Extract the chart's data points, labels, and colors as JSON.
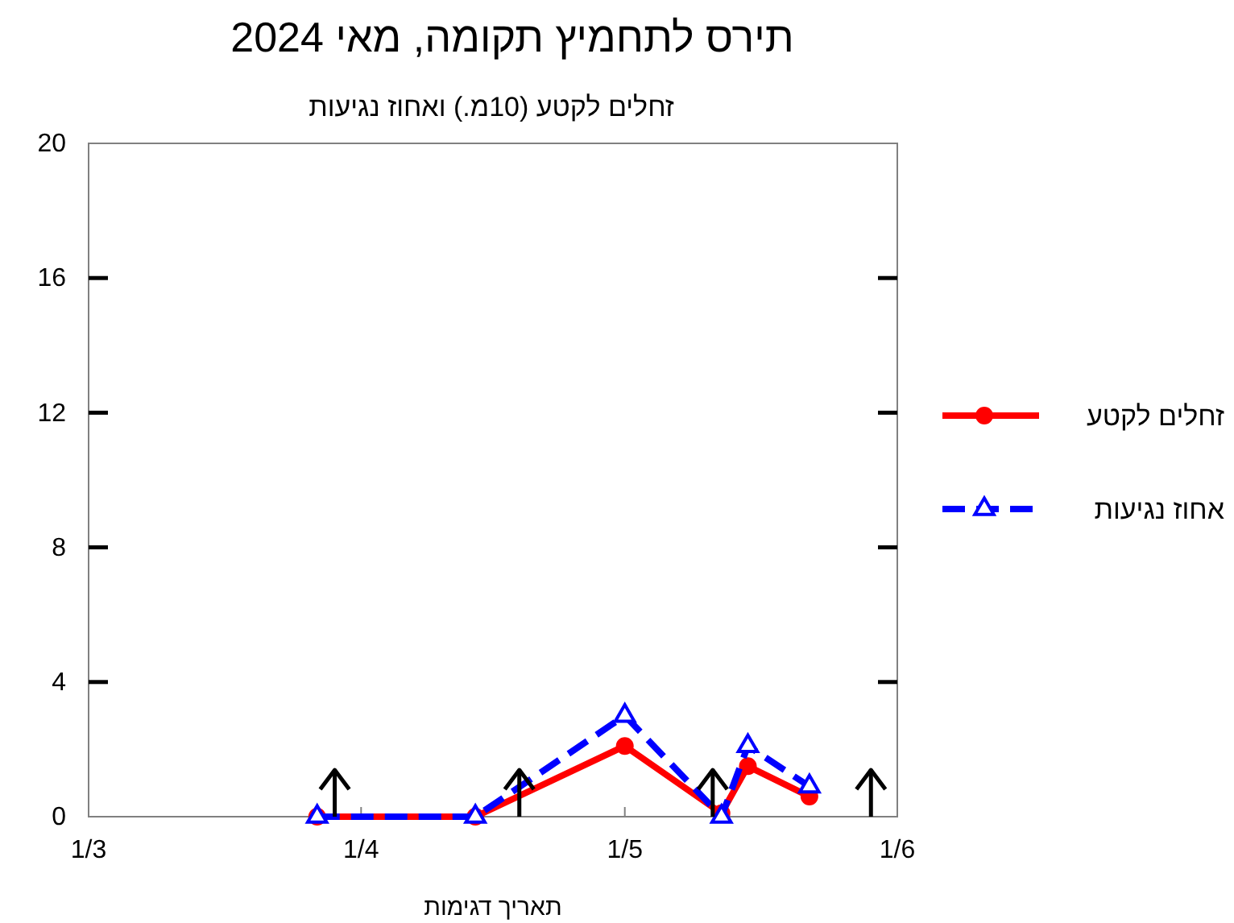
{
  "chart_data": {
    "type": "line",
    "title": "תירס לתחמיץ תקומה, מאי 2024",
    "subtitle": "זחלים לקטע (10מ.) ואחוז נגיעות",
    "xlabel": "תאריך דגימות",
    "xlim": [
      "2024-03-01",
      "2024-06-01"
    ],
    "xticks": [
      {
        "value": "2024-03-01",
        "label": "1/3"
      },
      {
        "value": "2024-04-01",
        "label": "1/4"
      },
      {
        "value": "2024-05-01",
        "label": "1/5"
      },
      {
        "value": "2024-06-01",
        "label": "1/6"
      }
    ],
    "ylim": [
      0,
      20
    ],
    "yticks": [
      0,
      4,
      8,
      12,
      16,
      20
    ],
    "grid": false,
    "legend": "right",
    "x": [
      "2024-03-27",
      "2024-04-14",
      "2024-05-01",
      "2024-05-12",
      "2024-05-15",
      "2024-05-22"
    ],
    "series": [
      {
        "name": "זחלים לקטע",
        "color": "#ff0000",
        "marker": "circle",
        "line_style": "solid",
        "values": [
          0,
          0,
          2.1,
          0.1,
          1.5,
          0.6
        ]
      },
      {
        "name": "אחוז נגיעות",
        "color": "#0000ff",
        "marker": "triangle",
        "line_style": "dashed",
        "values": [
          0,
          0,
          3.0,
          0,
          2.1,
          0.9
        ]
      },
      {
        "type": "scatter",
        "color": "#000000",
        "x": [
          "2024-03-29",
          "2024-04-19",
          "2024-05-11",
          "2024-05-29"
        ],
        "marker": "cross",
        "values": [
          1.1,
          1.1,
          1.1,
          1.1
        ],
        "errors": [
          [
            0,
            1.4
          ],
          [
            0,
            1.4
          ],
          [
            0,
            1.4
          ],
          [
            0,
            1.4
          ]
        ]
      }
    ]
  }
}
